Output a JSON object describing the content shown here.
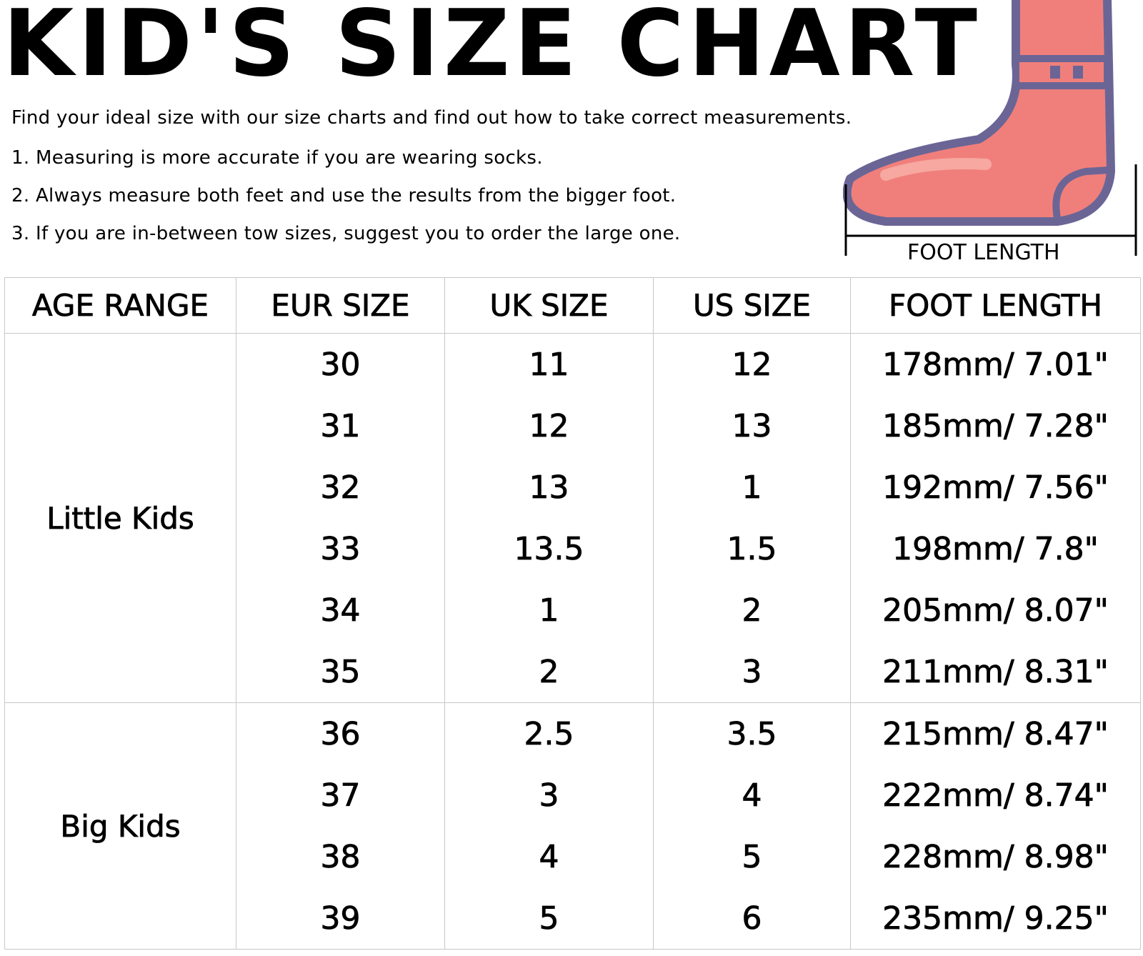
{
  "header": {
    "title": "KID'S SIZE CHART",
    "subtitle": "Find your ideal size with our size charts and find out how to take correct measurements.",
    "notes": [
      "1. Measuring is more accurate if you are wearing socks.",
      "2. Always measure both feet and use the results from the bigger foot.",
      "3. If you are in-between tow sizes, suggest you to order the large one."
    ]
  },
  "figure": {
    "label": "FOOT LENGTH"
  },
  "table": {
    "columns": [
      "AGE RANGE",
      "EUR SIZE",
      "UK SIZE",
      "US SIZE",
      "FOOT LENGTH"
    ],
    "groups": [
      {
        "label": "Little Kids",
        "rows": [
          [
            "30",
            "11",
            "12",
            "178mm/ 7.01\""
          ],
          [
            "31",
            "12",
            "13",
            "185mm/ 7.28\""
          ],
          [
            "32",
            "13",
            "1",
            "192mm/ 7.56\""
          ],
          [
            "33",
            "13.5",
            "1.5",
            "198mm/ 7.8\""
          ],
          [
            "34",
            "1",
            "2",
            "205mm/ 8.07\""
          ],
          [
            "35",
            "2",
            "3",
            "211mm/ 8.31\""
          ]
        ]
      },
      {
        "label": "Big Kids",
        "rows": [
          [
            "36",
            "2.5",
            "3.5",
            "215mm/ 8.47\""
          ],
          [
            "37",
            "3",
            "4",
            "222mm/ 8.74\""
          ],
          [
            "38",
            "4",
            "5",
            "228mm/ 8.98\""
          ],
          [
            "39",
            "5",
            "6",
            "235mm/ 9.25\""
          ]
        ]
      }
    ]
  }
}
